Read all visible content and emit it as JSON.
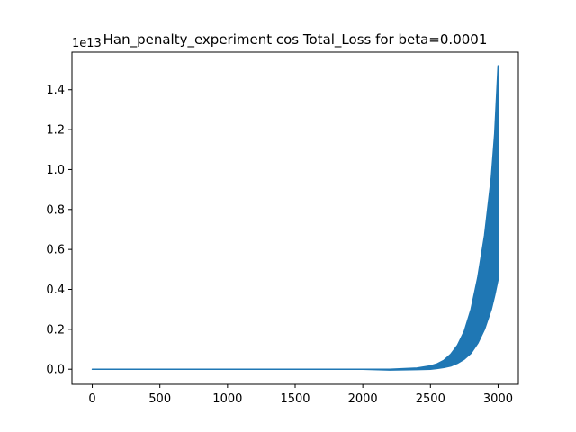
{
  "chart_data": {
    "type": "line",
    "title": "Han_penalty_experiment cos Total_Loss for beta=0.0001",
    "xlabel": "",
    "ylabel": "",
    "y_offset_label": "1e13",
    "xlim": [
      -150,
      3150
    ],
    "ylim": [
      -0.0757,
      1.5882
    ],
    "x_ticks": [
      0,
      500,
      1000,
      1500,
      2000,
      2500,
      3000
    ],
    "x_tick_labels": [
      "0",
      "500",
      "1000",
      "1500",
      "2000",
      "2500",
      "3000"
    ],
    "y_ticks": [
      0.0,
      0.2,
      0.4,
      0.6,
      0.8,
      1.0,
      1.2,
      1.4
    ],
    "y_tick_labels": [
      "0.0",
      "0.2",
      "0.4",
      "0.6",
      "0.8",
      "1.0",
      "1.2",
      "1.4"
    ],
    "grid": false,
    "legend": false,
    "series_color": "#1f77b4",
    "upper_envelope": {
      "x": [
        0,
        2000,
        2200,
        2400,
        2500,
        2550,
        2600,
        2650,
        2700,
        2750,
        2800,
        2850,
        2900,
        2950,
        2975,
        3000
      ],
      "y": [
        0.0,
        0.0,
        0.0,
        0.006,
        0.017,
        0.027,
        0.045,
        0.075,
        0.12,
        0.19,
        0.3,
        0.46,
        0.67,
        0.96,
        1.18,
        1.52
      ]
    },
    "lower_envelope": {
      "x": [
        0,
        2000,
        2200,
        2400,
        2500,
        2550,
        2600,
        2650,
        2700,
        2750,
        2800,
        2850,
        2900,
        2950,
        2975,
        3000
      ],
      "y": [
        0.0,
        0.0,
        -0.004,
        -0.002,
        0.0,
        0.004,
        0.009,
        0.016,
        0.03,
        0.05,
        0.08,
        0.13,
        0.2,
        0.3,
        0.37,
        0.45
      ]
    }
  }
}
